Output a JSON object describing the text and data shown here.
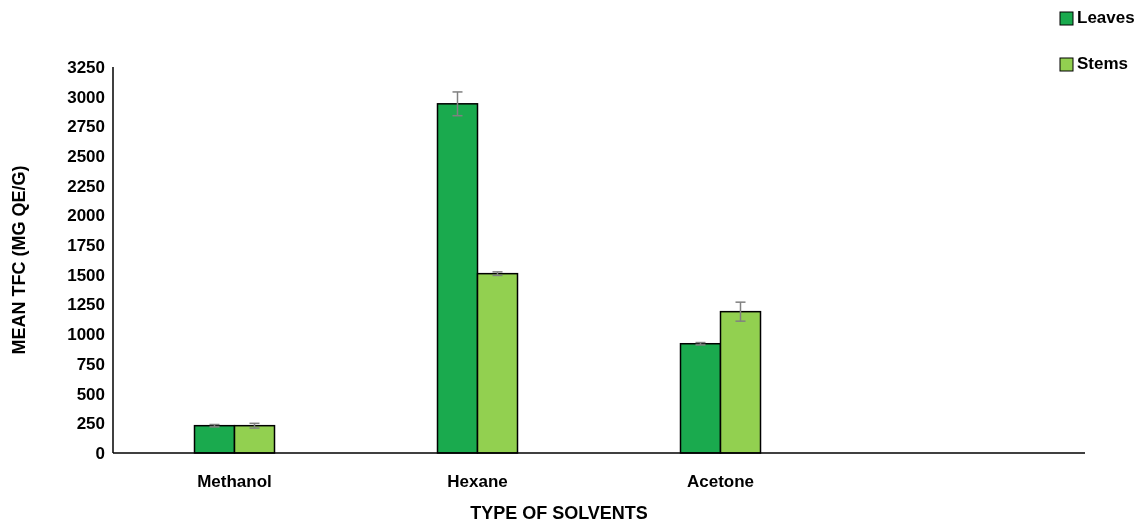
{
  "chart_data": {
    "type": "bar",
    "xlabel": "TYPE OF SOLVENTS",
    "ylabel": "MEAN TFC (MG QE/G)",
    "categories": [
      "Methanol",
      "Hexane",
      "Acetone",
      null
    ],
    "series": [
      {
        "name": "Leaves",
        "color": "#1aaa4e",
        "values": [
          230,
          2940,
          920,
          null
        ],
        "errors": [
          10,
          100,
          10,
          null
        ]
      },
      {
        "name": "Stems",
        "color": "#92d050",
        "values": [
          230,
          1510,
          1190,
          null
        ],
        "errors": [
          20,
          15,
          80,
          null
        ]
      }
    ],
    "ylim": [
      0,
      3250
    ],
    "yticks": [
      0,
      250,
      500,
      750,
      1000,
      1250,
      1500,
      1750,
      2000,
      2250,
      2500,
      2750,
      3000,
      3250
    ],
    "grid": false,
    "legend": "top right"
  }
}
